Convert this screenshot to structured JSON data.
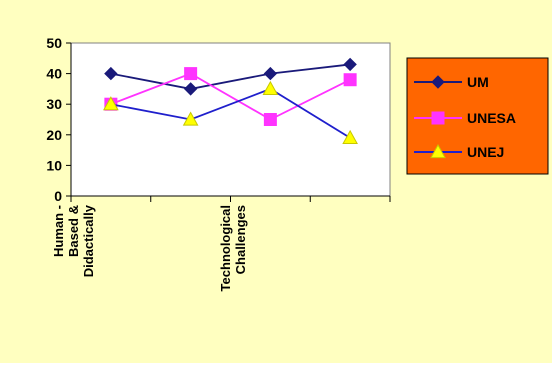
{
  "chart_data": {
    "type": "line",
    "categories": [
      "Human - Based & Didactically",
      "",
      "Technological Challenges",
      ""
    ],
    "category_label_lines": [
      [
        "Human -",
        "Based &",
        "Didactically"
      ],
      [],
      [
        "Technological",
        "Challenges"
      ],
      []
    ],
    "series": [
      {
        "name": "UM",
        "values": [
          40,
          35,
          40,
          43
        ],
        "color": "#1a1a7a",
        "marker": "diamond"
      },
      {
        "name": "UNESA",
        "values": [
          30,
          40,
          25,
          38
        ],
        "color": "#ff33ff",
        "marker": "square"
      },
      {
        "name": "UNEJ",
        "values": [
          30,
          25,
          35,
          19
        ],
        "color": "#1f1fcc",
        "marker": "triangle",
        "marker_color": "#ffff00"
      }
    ],
    "yticks": [
      0,
      10,
      20,
      30,
      40,
      50
    ],
    "ylim": [
      0,
      50
    ],
    "grid": false,
    "legend_position": "right",
    "colors": {
      "chart_background": "#ffffc0",
      "plot_background": "#ffffff",
      "legend_background": "#ff6600"
    }
  }
}
